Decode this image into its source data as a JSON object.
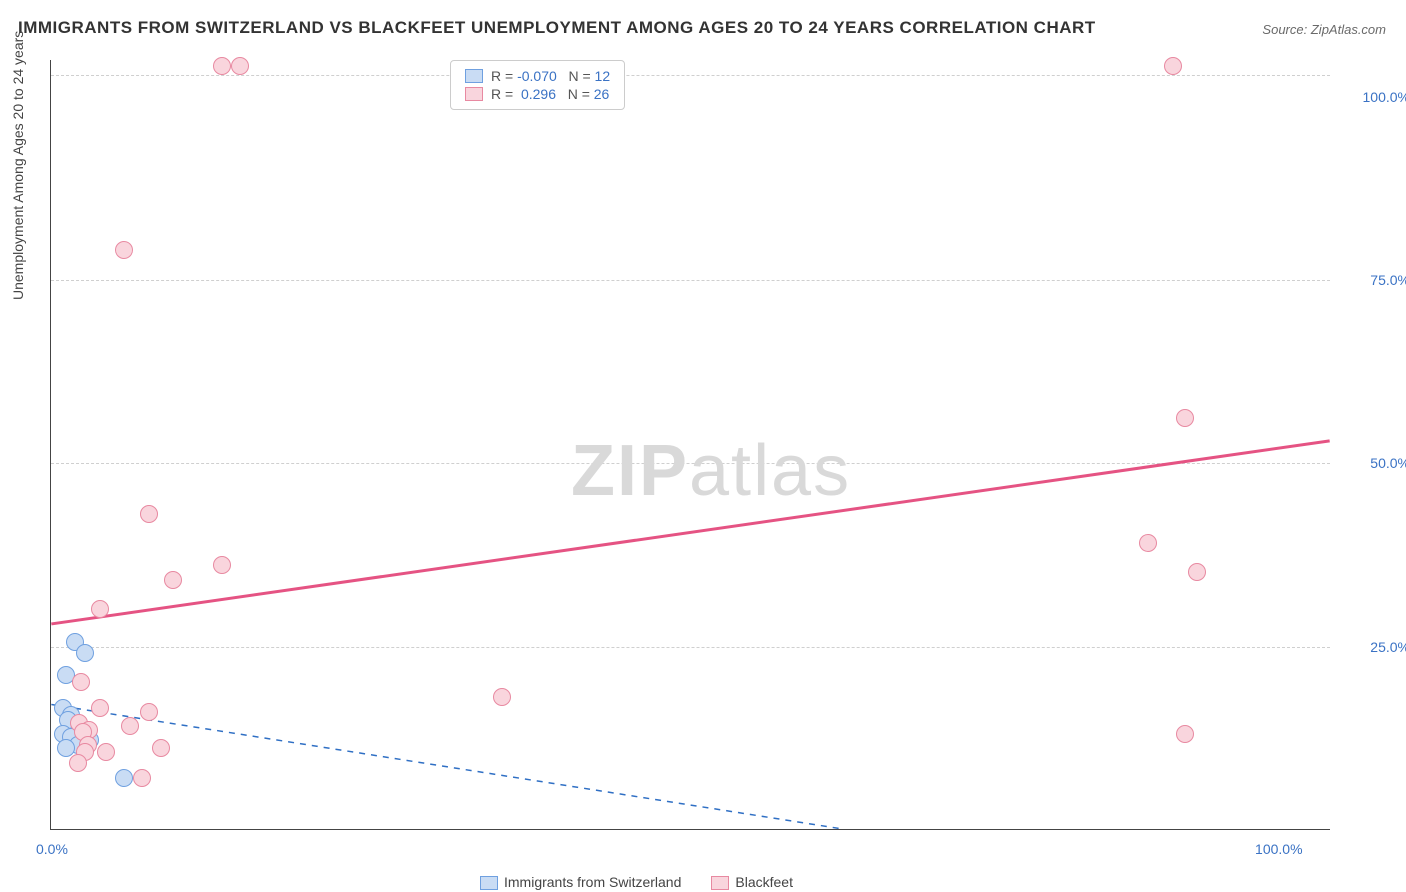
{
  "title_text": "IMMIGRANTS FROM SWITZERLAND VS BLACKFEET UNEMPLOYMENT AMONG AGES 20 TO 24 YEARS CORRELATION CHART",
  "title_color": "#333333",
  "title_fontsize": 17,
  "source_label": "Source:",
  "source_text": "ZipAtlas.com",
  "source_color": "#6a6a6a",
  "ylabel": "Unemployment Among Ages 20 to 24 years",
  "axis_label_color": "#444444",
  "chart": {
    "type": "scatter",
    "xlim": [
      0,
      105
    ],
    "ylim": [
      0,
      105
    ],
    "grid_y": [
      25,
      50,
      75,
      103
    ],
    "grid_color": "#cfcfcf",
    "yticks": [
      {
        "v": 25,
        "label": "25.0%"
      },
      {
        "v": 50,
        "label": "50.0%"
      },
      {
        "v": 75,
        "label": "75.0%"
      },
      {
        "v": 100,
        "label": "100.0%"
      }
    ],
    "xticks": [
      {
        "v": 0,
        "label": "0.0%"
      },
      {
        "v": 100,
        "label": "100.0%"
      }
    ],
    "tick_color": "#3a72c4",
    "background_color": "#ffffff"
  },
  "watermark": {
    "zip": "ZIP",
    "atlas": "atlas",
    "color": "#d9d9d9",
    "fontsize": 72
  },
  "series": [
    {
      "name": "Immigrants from Switzerland",
      "fill": "#c9dcf4",
      "stroke": "#6fa0e0",
      "line_color": "#2f6fc4",
      "line_dash": "6 6",
      "R": "-0.070",
      "N": "12",
      "trend": {
        "x1": 0,
        "y1": 17,
        "x2": 65,
        "y2": 0
      },
      "points": [
        {
          "x": 2.0,
          "y": 25.5
        },
        {
          "x": 2.8,
          "y": 24.0
        },
        {
          "x": 1.2,
          "y": 21.0
        },
        {
          "x": 1.0,
          "y": 16.5
        },
        {
          "x": 1.6,
          "y": 15.5
        },
        {
          "x": 1.4,
          "y": 14.8
        },
        {
          "x": 1.0,
          "y": 13.0
        },
        {
          "x": 1.6,
          "y": 12.5
        },
        {
          "x": 2.2,
          "y": 11.5
        },
        {
          "x": 1.2,
          "y": 11.0
        },
        {
          "x": 3.2,
          "y": 12.2
        },
        {
          "x": 6.0,
          "y": 7.0
        }
      ]
    },
    {
      "name": "Blackfeet",
      "fill": "#f9d5dd",
      "stroke": "#e889a1",
      "line_color": "#e55383",
      "line_dash": "",
      "R": "0.296",
      "N": "26",
      "trend": {
        "x1": 0,
        "y1": 28,
        "x2": 105,
        "y2": 53
      },
      "points": [
        {
          "x": 14,
          "y": 104
        },
        {
          "x": 15.5,
          "y": 104
        },
        {
          "x": 92,
          "y": 104
        },
        {
          "x": 6,
          "y": 79
        },
        {
          "x": 93,
          "y": 56
        },
        {
          "x": 8,
          "y": 43
        },
        {
          "x": 90,
          "y": 39
        },
        {
          "x": 14,
          "y": 36
        },
        {
          "x": 94,
          "y": 35
        },
        {
          "x": 10,
          "y": 34
        },
        {
          "x": 4,
          "y": 30
        },
        {
          "x": 2.5,
          "y": 20
        },
        {
          "x": 37,
          "y": 18
        },
        {
          "x": 4,
          "y": 16.5
        },
        {
          "x": 8,
          "y": 16
        },
        {
          "x": 2.3,
          "y": 14.5
        },
        {
          "x": 6.5,
          "y": 14
        },
        {
          "x": 3.1,
          "y": 13.5
        },
        {
          "x": 2.6,
          "y": 13.2
        },
        {
          "x": 93,
          "y": 13
        },
        {
          "x": 9,
          "y": 11
        },
        {
          "x": 3,
          "y": 11.5
        },
        {
          "x": 4.5,
          "y": 10.5
        },
        {
          "x": 2.8,
          "y": 10.5
        },
        {
          "x": 7.5,
          "y": 7
        },
        {
          "x": 2.2,
          "y": 9
        }
      ]
    }
  ],
  "legend_bottom": {
    "label_0": "Immigrants from Switzerland",
    "label_1": "Blackfeet"
  },
  "legend_top": {
    "r_label": "R =",
    "n_label": "N ="
  }
}
